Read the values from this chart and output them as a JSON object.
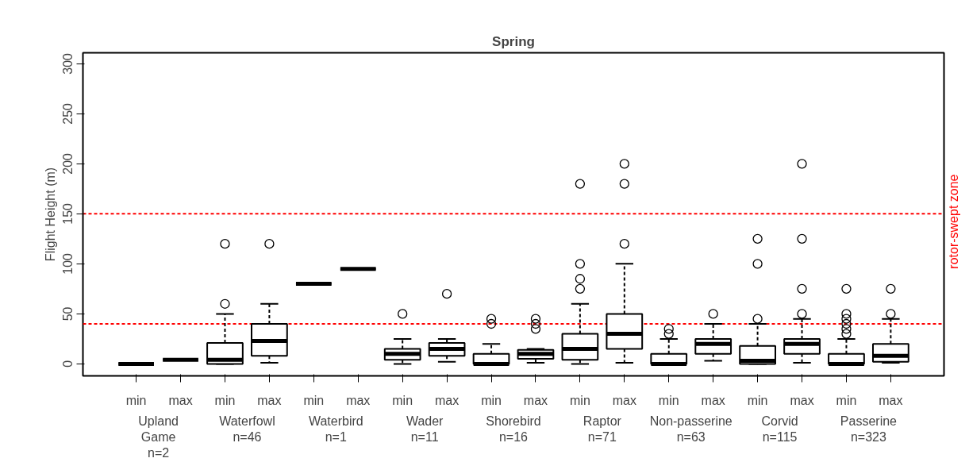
{
  "chart_data": {
    "type": "box",
    "title": "Spring",
    "ylabel": "Flight Height (m)",
    "categories": [
      "min",
      "max",
      "min",
      "max",
      "min",
      "max",
      "min",
      "max",
      "min",
      "max",
      "min",
      "max",
      "min",
      "max",
      "min",
      "max",
      "min",
      "max"
    ],
    "boxes": [
      {
        "low": 0,
        "q1": 0,
        "median": 0,
        "q3": 0,
        "high": 0
      },
      {
        "low": 4,
        "q1": 4,
        "median": 4,
        "q3": 4,
        "high": 4
      },
      {
        "low": 0,
        "q1": 0,
        "median": 4,
        "q3": 21,
        "high": 50,
        "outliers": [
          60,
          120
        ]
      },
      {
        "low": 1,
        "q1": 8,
        "median": 23,
        "q3": 40,
        "high": 60,
        "outliers": [
          120
        ]
      },
      {
        "low": 80,
        "q1": 80,
        "median": 80,
        "q3": 80,
        "high": 80
      },
      {
        "low": 95,
        "q1": 95,
        "median": 95,
        "q3": 95,
        "high": 95
      },
      {
        "low": 0,
        "q1": 4,
        "median": 10,
        "q3": 15,
        "high": 25,
        "outliers": [
          50
        ]
      },
      {
        "low": 2,
        "q1": 8,
        "median": 15,
        "q3": 21,
        "high": 25,
        "outliers": [
          70
        ]
      },
      {
        "low": 0,
        "q1": 0,
        "median": 0,
        "q3": 10,
        "high": 20,
        "outliers": [
          40,
          45
        ]
      },
      {
        "low": 1,
        "q1": 5,
        "median": 10,
        "q3": 14,
        "high": 15,
        "outliers": [
          35,
          40,
          45
        ]
      },
      {
        "low": 0,
        "q1": 4,
        "median": 15,
        "q3": 30,
        "high": 60,
        "outliers": [
          75,
          85,
          100,
          180
        ]
      },
      {
        "low": 1,
        "q1": 15,
        "median": 30,
        "q3": 50,
        "high": 100,
        "outliers": [
          120,
          180,
          200
        ]
      },
      {
        "low": 0,
        "q1": 0,
        "median": 0,
        "q3": 10,
        "high": 25,
        "outliers": [
          30,
          35
        ]
      },
      {
        "low": 3,
        "q1": 10,
        "median": 20,
        "q3": 25,
        "high": 40,
        "outliers": [
          50
        ]
      },
      {
        "low": 0,
        "q1": 0,
        "median": 3,
        "q3": 18,
        "high": 40,
        "outliers": [
          45,
          100,
          125
        ]
      },
      {
        "low": 1,
        "q1": 10,
        "median": 20,
        "q3": 25,
        "high": 45,
        "outliers": [
          50,
          75,
          125,
          200
        ]
      },
      {
        "low": 0,
        "q1": 0,
        "median": 0,
        "q3": 10,
        "high": 25,
        "outliers": [
          30,
          35,
          40,
          45,
          50,
          75
        ]
      },
      {
        "low": 1,
        "q1": 2,
        "median": 8,
        "q3": 20,
        "high": 45,
        "outliers": [
          50,
          75
        ]
      }
    ],
    "ylim": [
      -12,
      311
    ],
    "yticks": [
      0,
      50,
      100,
      150,
      200,
      250,
      300
    ],
    "grid": false,
    "ref_lines": [
      {
        "axis": "y",
        "value": 40,
        "color": "#ff0000",
        "line_style": "dashed"
      },
      {
        "axis": "y",
        "value": 150,
        "color": "#ff0000",
        "line_style": "dashed"
      }
    ],
    "annotations": [
      "Upland\nGame\nn=2",
      "Waterfowl\nn=46",
      "Waterbird\nn=1",
      "Wader\nn=11",
      "Shorebird\nn=16",
      "Raptor\nn=71",
      "Non-passerine\nn=63",
      "Corvid\nn=115",
      "Passerine\nn=323",
      "rotor-swept zone"
    ]
  }
}
